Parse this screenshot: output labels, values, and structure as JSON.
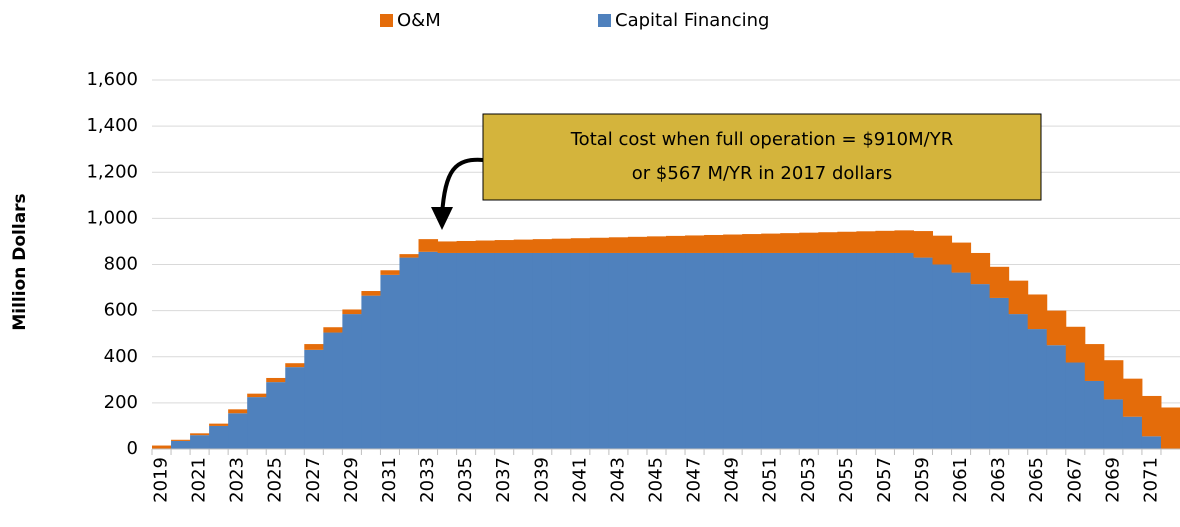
{
  "chart_data": {
    "type": "stacked_step_area",
    "y_axis_label": "Million Dollars",
    "categories": [
      "2019",
      null,
      "2021",
      null,
      "2023",
      null,
      "2025",
      null,
      "2027",
      null,
      "2029",
      null,
      "2031",
      null,
      "2033",
      null,
      "2035",
      null,
      "2037",
      null,
      "2039",
      null,
      "2041",
      null,
      "2043",
      null,
      "2045",
      null,
      "2047",
      null,
      "2049",
      null,
      "2051",
      null,
      "2053",
      null,
      "2055",
      null,
      "2057",
      null,
      "2059",
      null,
      "2061",
      null,
      "2063",
      null,
      "2065",
      null,
      "2067",
      null,
      "2069",
      null,
      "2071",
      null
    ],
    "series": [
      {
        "name": "Capital Financing",
        "color": "#4f81bd",
        "values": [
          0,
          35,
          60,
          100,
          155,
          225,
          290,
          355,
          430,
          505,
          585,
          665,
          755,
          830,
          855,
          850,
          850,
          850,
          850,
          850,
          850,
          850,
          850,
          850,
          850,
          850,
          850,
          850,
          850,
          850,
          850,
          850,
          850,
          850,
          850,
          850,
          850,
          850,
          850,
          850,
          830,
          800,
          765,
          715,
          655,
          585,
          520,
          450,
          375,
          295,
          215,
          140,
          55,
          0
        ]
      },
      {
        "name": "O&M",
        "color": "#e46c0a",
        "values": [
          15,
          5,
          8,
          10,
          17,
          15,
          18,
          17,
          25,
          23,
          20,
          20,
          20,
          15,
          55,
          50,
          52,
          54,
          56,
          58,
          60,
          62,
          64,
          66,
          68,
          70,
          72,
          74,
          76,
          78,
          80,
          82,
          84,
          86,
          88,
          90,
          92,
          94,
          96,
          98,
          115,
          125,
          130,
          135,
          135,
          145,
          150,
          150,
          155,
          160,
          170,
          165,
          175,
          180
        ]
      }
    ],
    "legend_order": [
      1,
      0
    ],
    "ylim": [
      0,
      1600
    ],
    "yticks": [
      0,
      200,
      400,
      600,
      800,
      {
        "value": 1000,
        "label": "1,000"
      },
      {
        "value": 1200,
        "label": "1,200"
      },
      {
        "value": 1400,
        "label": "1,400"
      },
      {
        "value": 1600,
        "label": "1,600"
      }
    ],
    "grid": true,
    "annotation": {
      "lines": [
        "Total cost when full operation = $910M/YR",
        "or $567 M/YR in 2017 dollars"
      ],
      "color": "#d4b43c"
    }
  }
}
